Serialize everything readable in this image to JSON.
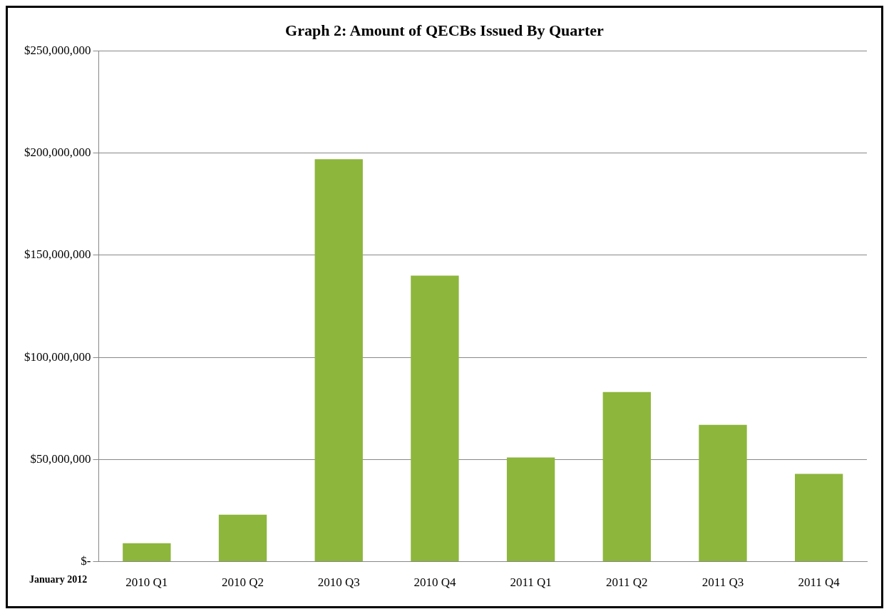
{
  "chart_data": {
    "type": "bar",
    "title": "Graph 2: Amount of QECBs Issued By Quarter",
    "categories": [
      "2010 Q1",
      "2010 Q2",
      "2010 Q3",
      "2010 Q4",
      "2011 Q1",
      "2011 Q2",
      "2011 Q3",
      "2011 Q4"
    ],
    "values": [
      9000000,
      23000000,
      197000000,
      140000000,
      51000000,
      83000000,
      67000000,
      43000000
    ],
    "color": "#8db63c",
    "ylim": [
      0,
      250000000
    ],
    "yticks": [
      {
        "value": 0,
        "label": "$-"
      },
      {
        "value": 50000000,
        "label": "$50,000,000"
      },
      {
        "value": 100000000,
        "label": "$100,000,000"
      },
      {
        "value": 150000000,
        "label": "$150,000,000"
      },
      {
        "value": 200000000,
        "label": "$200,000,000"
      },
      {
        "value": 250000000,
        "label": "$250,000,000"
      }
    ],
    "grid": "y",
    "legend": false,
    "annotations": [
      "January 2012"
    ]
  }
}
